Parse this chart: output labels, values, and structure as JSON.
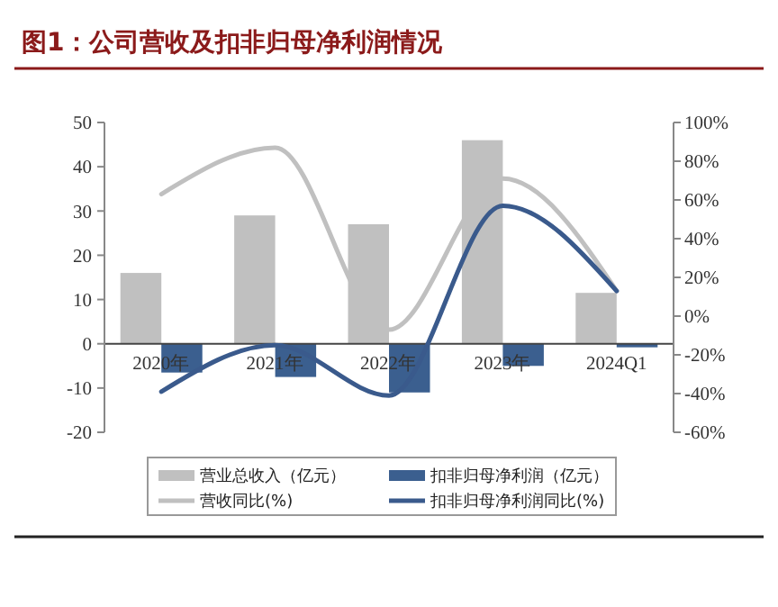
{
  "chart_data": {
    "type": "bar",
    "title": "图1：公司营收及扣非归母净利润情况",
    "categories": [
      "2020年",
      "2021年",
      "2022年",
      "2023年",
      "2024Q1"
    ],
    "series": [
      {
        "name": "营业总收入（亿元）",
        "color": "#c0c0c0",
        "values": [
          16,
          29,
          27,
          46,
          11.5
        ]
      },
      {
        "name": "扣非归母净利润（亿元）",
        "color": "#3b5f8f",
        "values": [
          -6.5,
          -7.5,
          -11,
          -5,
          -0.8
        ]
      },
      {
        "name": "营收同比(%)",
        "type": "line",
        "axis": "y2",
        "color": "#c0c0c0",
        "values": [
          63,
          87,
          -7,
          71,
          13
        ]
      },
      {
        "name": "扣非归母净利润同比(%)",
        "type": "line",
        "axis": "y2",
        "color": "#3a5a8c",
        "values": [
          -39,
          -15,
          -41,
          57,
          13
        ]
      }
    ],
    "ylim": [
      -20,
      50
    ],
    "yticks": [
      -20,
      -10,
      0,
      10,
      20,
      30,
      40,
      50
    ],
    "y2lim": [
      -60,
      100
    ],
    "y2ticks": [
      {
        "value": -60,
        "label": "-60%"
      },
      {
        "value": -40,
        "label": "-40%"
      },
      {
        "value": -20,
        "label": "-20%"
      },
      {
        "value": 0,
        "label": "0%"
      },
      {
        "value": 20,
        "label": "20%"
      },
      {
        "value": 40,
        "label": "40%"
      },
      {
        "value": 60,
        "label": "60%"
      },
      {
        "value": 80,
        "label": "80%"
      },
      {
        "value": 100,
        "label": "100%"
      }
    ],
    "grid": false,
    "legend": "bottom",
    "marker": "none",
    "line_style": "solid"
  }
}
